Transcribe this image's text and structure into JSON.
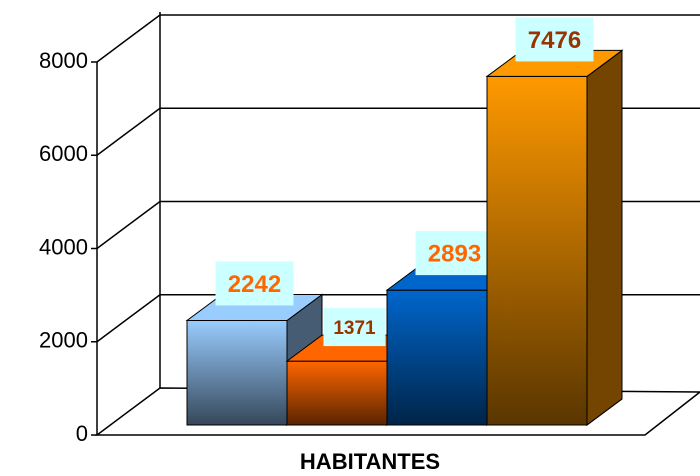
{
  "chart_data": {
    "type": "bar3d",
    "categories": [
      "HABITANTES"
    ],
    "series": [
      {
        "color": "#99ccff",
        "label_color": "#ff6600",
        "values": [
          2242
        ]
      },
      {
        "color": "#ff6600",
        "label_color": "#993300",
        "values": [
          1371
        ]
      },
      {
        "color": "#0066cc",
        "label_color": "#ff6600",
        "values": [
          2893
        ]
      },
      {
        "color": "#ff9900",
        "label_color": "#993300",
        "values": [
          7476
        ]
      }
    ],
    "ylim": [
      0,
      8000
    ],
    "yticks": [
      0,
      2000,
      4000,
      6000,
      8000
    ],
    "grid": true
  }
}
